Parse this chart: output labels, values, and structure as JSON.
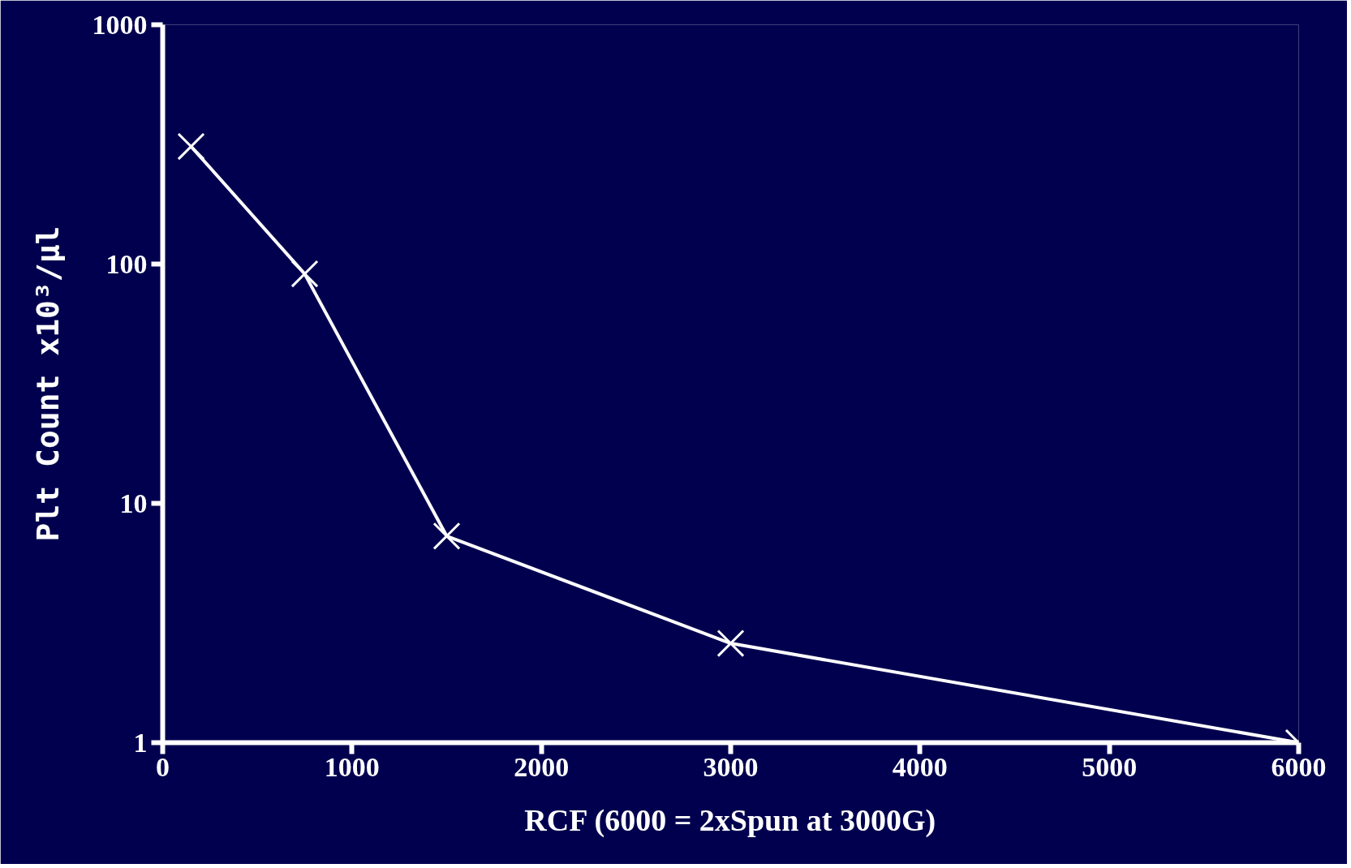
{
  "chart_data": {
    "type": "line",
    "xlabel": "RCF (6000 = 2xSpun at 3000G)",
    "ylabel": "Plt Count x10³/μl",
    "x": [
      150,
      750,
      1500,
      3000,
      6000
    ],
    "series": [
      {
        "color": "#ffffff",
        "values": [
          310,
          91,
          7.3,
          2.6,
          1
        ]
      }
    ],
    "xlim": [
      0,
      6000
    ],
    "xticks": [
      0,
      1000,
      2000,
      3000,
      4000,
      5000,
      6000
    ],
    "ylim": [
      1,
      1000
    ],
    "yticks": [
      1,
      10,
      100,
      1000
    ],
    "log": true,
    "grid": false,
    "marker": "cross",
    "line_style": "solid"
  }
}
